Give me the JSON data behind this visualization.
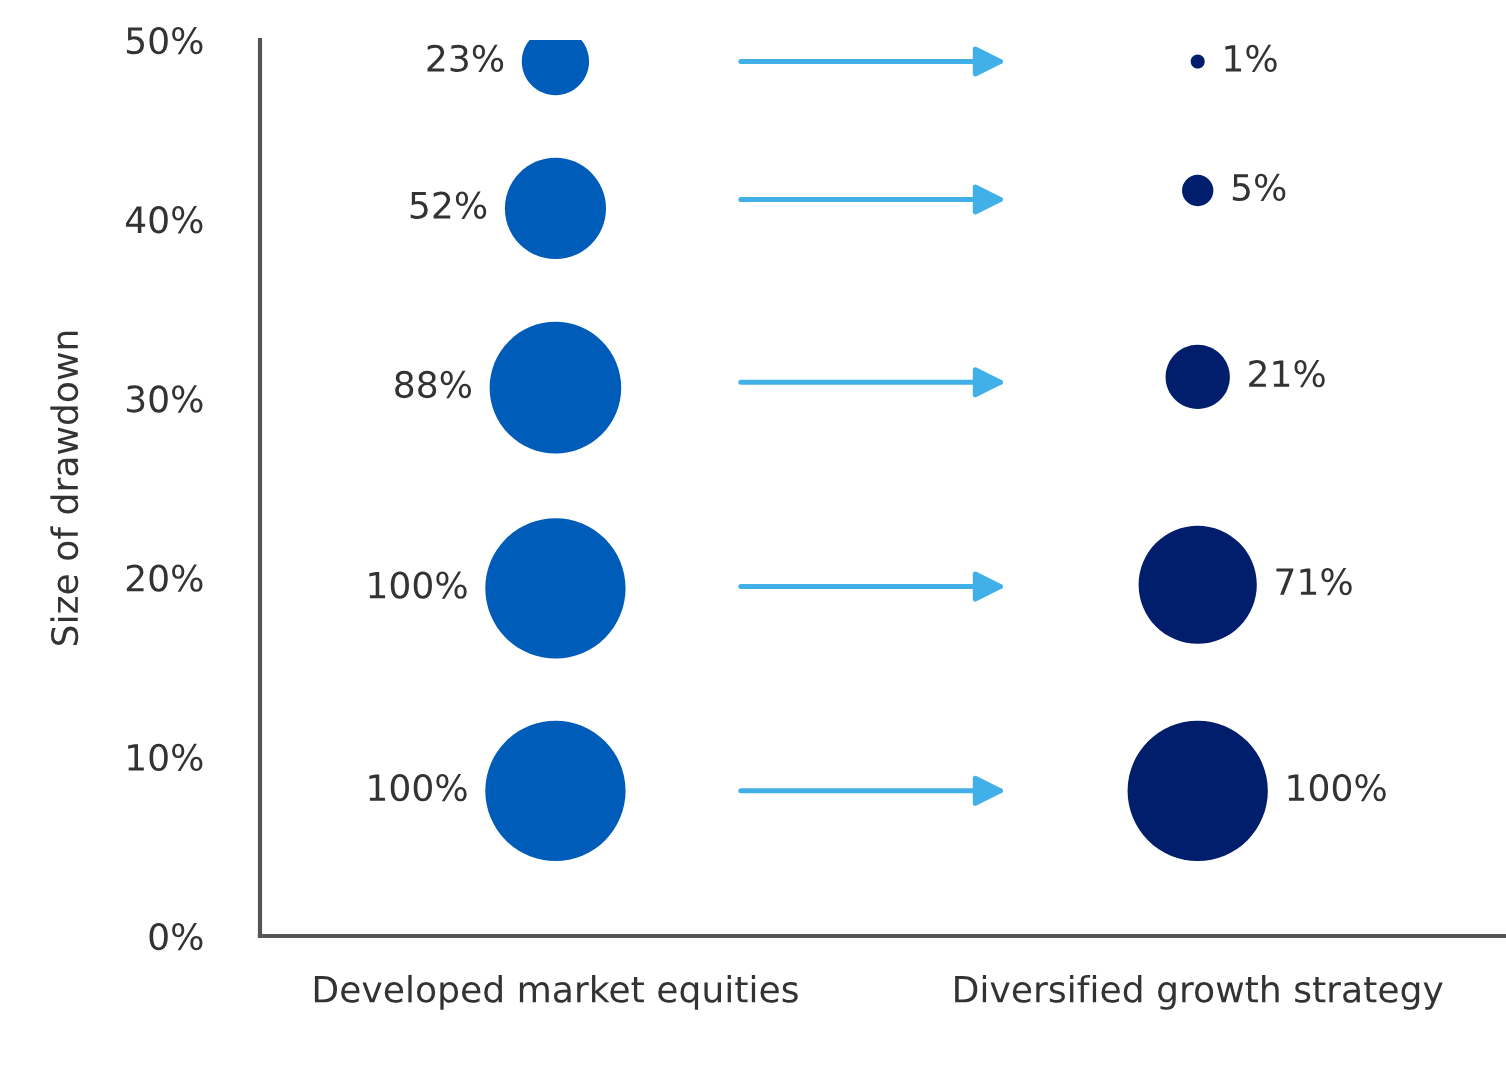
{
  "chart_data": {
    "type": "bubble",
    "ylabel": "Size of drawdown",
    "categories": [
      "Developed market equities",
      "Diversified growth strategy"
    ],
    "series": [
      {
        "x": [
          "Developed market equities",
          "Developed market equities",
          "Developed market equities",
          "Developed market equities",
          "Developed market equities"
        ],
        "values": [
          48.8,
          40.6,
          30.6,
          19.4,
          8.1
        ],
        "sizes": [
          0.23,
          0.52,
          0.88,
          1,
          1
        ],
        "value_labels": [
          "23%",
          "52%",
          "88%",
          "100%",
          "100%"
        ],
        "color": "#005cb9"
      },
      {
        "x": [
          "Diversified growth strategy",
          "Diversified growth strategy",
          "Diversified growth strategy",
          "Diversified growth strategy",
          "Diversified growth strategy"
        ],
        "values": [
          48.8,
          41.6,
          31.2,
          19.6,
          8.1
        ],
        "sizes": [
          0.01,
          0.05,
          0.21,
          0.71,
          1
        ],
        "value_labels": [
          "1%",
          "5%",
          "21%",
          "71%",
          "100%"
        ],
        "color": "#001e6c"
      }
    ],
    "ylim": [
      0,
      50
    ],
    "yticks": [
      {
        "value": 0,
        "label": "0%"
      },
      {
        "value": 10,
        "label": "10%"
      },
      {
        "value": 20,
        "label": "20%"
      },
      {
        "value": 30,
        "label": "30%"
      },
      {
        "value": 40,
        "label": "40%"
      },
      {
        "value": 50,
        "label": "50%"
      }
    ],
    "grid": false,
    "legend": false
  }
}
